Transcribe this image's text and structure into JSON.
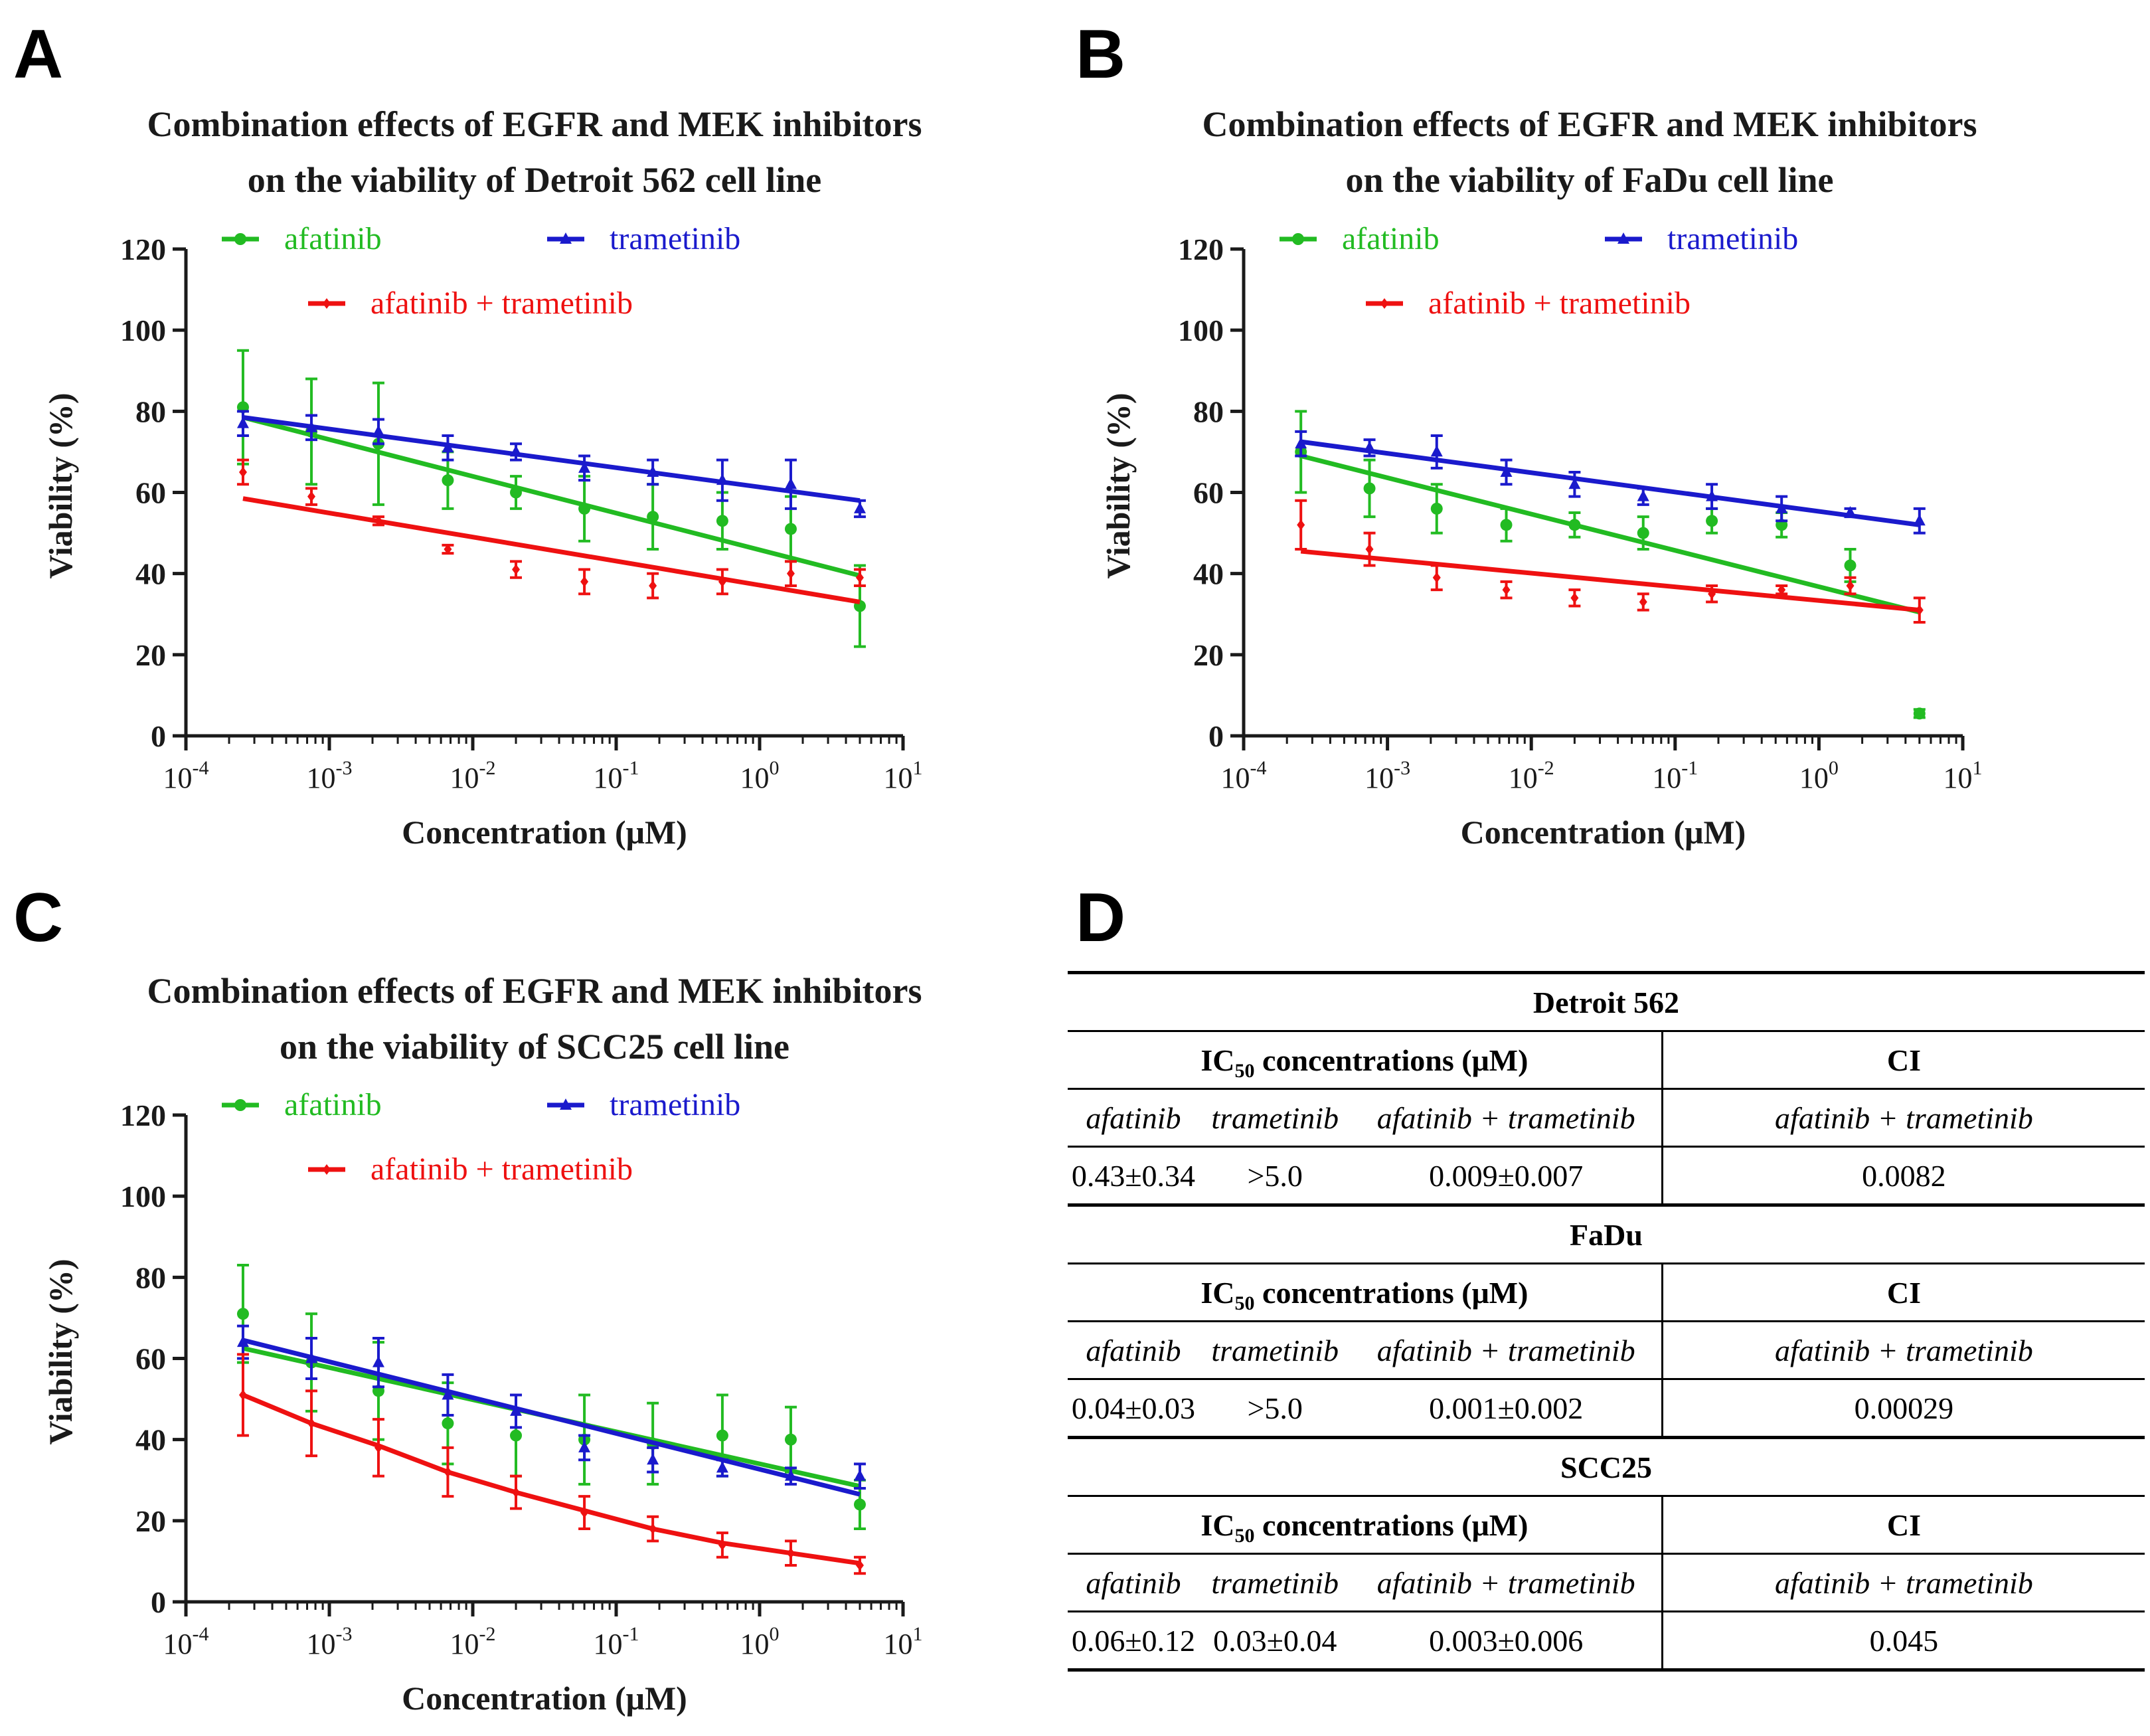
{
  "panel_letters": {
    "a": "A",
    "b": "B",
    "c": "C",
    "d": "D"
  },
  "colors": {
    "afatinib": "#22bb22",
    "trametinib": "#1a1acc",
    "combo": "#ee1111"
  },
  "chart_data": [
    {
      "type": "line",
      "panel": "A",
      "title_lines": [
        "Combination effects of EGFR and MEK inhibitors",
        "on the viability of Detroit 562 cell line"
      ],
      "xlabel": "Concentration (μM)",
      "ylabel": "Viability (%)",
      "xscale": "log",
      "xlim": [
        0.0001,
        10
      ],
      "ylim": [
        0,
        120
      ],
      "xticks": [
        {
          "base": "10",
          "exp": "-4"
        },
        {
          "base": "10",
          "exp": "-3"
        },
        {
          "base": "10",
          "exp": "-2"
        },
        {
          "base": "10",
          "exp": "-1"
        },
        {
          "base": "10",
          "exp": "0"
        },
        {
          "base": "10",
          "exp": "1"
        }
      ],
      "yticks": [
        "0",
        "20",
        "40",
        "60",
        "80",
        "100",
        "120"
      ],
      "x": [
        0.00025,
        0.00075,
        0.0022,
        0.0067,
        0.02,
        0.06,
        0.18,
        0.55,
        1.65,
        5
      ],
      "series": [
        {
          "name": "afatinib",
          "key": "afatinib",
          "marker": "circle",
          "values": [
            81,
            75,
            72,
            63,
            60,
            56,
            54,
            53,
            51,
            32
          ],
          "errors": [
            14,
            13,
            15,
            7,
            4,
            8,
            8,
            7,
            8,
            10
          ],
          "fit": [
            78.5,
            39.5
          ]
        },
        {
          "name": "trametinib",
          "key": "trametinib",
          "marker": "triangle",
          "values": [
            77,
            76,
            75,
            71,
            70,
            66,
            65,
            63,
            62,
            56
          ],
          "errors": [
            3,
            3,
            3,
            3,
            2,
            3,
            3,
            5,
            6,
            2
          ],
          "fit": [
            78.5,
            58
          ]
        },
        {
          "name": "afatinib + trametinib",
          "key": "combo",
          "marker": "diamond",
          "values": [
            65,
            59,
            53,
            46,
            41,
            38,
            37,
            38,
            40,
            39
          ],
          "errors": [
            3,
            2,
            1,
            1,
            2,
            3,
            3,
            3,
            3,
            2
          ],
          "fit": [
            58.5,
            33
          ]
        }
      ]
    },
    {
      "type": "line",
      "panel": "B",
      "title_lines": [
        "Combination effects of EGFR and MEK inhibitors",
        "on the viability of FaDu cell line"
      ],
      "xlabel": "Concentration (μM)",
      "ylabel": "Viability (%)",
      "xscale": "log",
      "xlim": [
        0.0001,
        10
      ],
      "ylim": [
        0,
        120
      ],
      "xticks": [
        {
          "base": "10",
          "exp": "-4"
        },
        {
          "base": "10",
          "exp": "-3"
        },
        {
          "base": "10",
          "exp": "-2"
        },
        {
          "base": "10",
          "exp": "-1"
        },
        {
          "base": "10",
          "exp": "0"
        },
        {
          "base": "10",
          "exp": "1"
        }
      ],
      "yticks": [
        "0",
        "20",
        "40",
        "60",
        "80",
        "100",
        "120"
      ],
      "x": [
        0.00025,
        0.00075,
        0.0022,
        0.0067,
        0.02,
        0.06,
        0.18,
        0.55,
        1.65,
        5
      ],
      "series": [
        {
          "name": "afatinib",
          "key": "afatinib",
          "marker": "circle",
          "values": [
            70,
            61,
            56,
            52,
            52,
            50,
            53,
            52,
            42,
            5.5
          ],
          "errors": [
            10,
            7,
            6,
            4,
            3,
            4,
            3,
            3,
            4,
            1
          ],
          "fit": [
            69,
            30.5
          ]
        },
        {
          "name": "trametinib",
          "key": "trametinib",
          "marker": "triangle",
          "values": [
            72,
            71,
            70,
            65,
            62,
            59,
            59,
            56,
            55,
            53
          ],
          "errors": [
            3,
            2,
            4,
            3,
            3,
            2,
            3,
            3,
            1,
            3
          ],
          "fit": [
            72.5,
            52
          ]
        },
        {
          "name": "afatinib + trametinib",
          "key": "combo",
          "marker": "diamond",
          "values": [
            52,
            46,
            39,
            36,
            34,
            33,
            35,
            36,
            37,
            31
          ],
          "errors": [
            6,
            4,
            3,
            2,
            2,
            2,
            2,
            1,
            2,
            3
          ],
          "fit": [
            45.5,
            31
          ]
        }
      ]
    },
    {
      "type": "line",
      "panel": "C",
      "title_lines": [
        "Combination effects of EGFR and MEK inhibitors",
        "on the viability of SCC25 cell line"
      ],
      "xlabel": "Concentration (μM)",
      "ylabel": "Viability (%)",
      "xscale": "log",
      "xlim": [
        0.0001,
        10
      ],
      "ylim": [
        0,
        120
      ],
      "xticks": [
        {
          "base": "10",
          "exp": "-4"
        },
        {
          "base": "10",
          "exp": "-3"
        },
        {
          "base": "10",
          "exp": "-2"
        },
        {
          "base": "10",
          "exp": "-1"
        },
        {
          "base": "10",
          "exp": "0"
        },
        {
          "base": "10",
          "exp": "1"
        }
      ],
      "yticks": [
        "0",
        "20",
        "40",
        "60",
        "80",
        "100",
        "120"
      ],
      "x": [
        0.00025,
        0.00075,
        0.0022,
        0.0067,
        0.02,
        0.06,
        0.18,
        0.55,
        1.65,
        5
      ],
      "series": [
        {
          "name": "afatinib",
          "key": "afatinib",
          "marker": "circle",
          "values": [
            71,
            59,
            52,
            44,
            41,
            40,
            39,
            41,
            40,
            24
          ],
          "errors": [
            12,
            12,
            12,
            10,
            10,
            11,
            10,
            10,
            8,
            6
          ],
          "fit": [
            62.5,
            28.5
          ]
        },
        {
          "name": "trametinib",
          "key": "trametinib",
          "marker": "triangle",
          "values": [
            64,
            60,
            59,
            51,
            47,
            38,
            35,
            33,
            31,
            31
          ],
          "errors": [
            4,
            5,
            6,
            5,
            4,
            3,
            3,
            2,
            2,
            3
          ],
          "fit": [
            64.5,
            26.5
          ]
        },
        {
          "name": "afatinib + trametinib",
          "key": "combo",
          "marker": "diamond",
          "values": [
            51,
            44,
            38,
            32,
            27,
            22,
            18,
            14,
            12,
            9
          ],
          "errors": [
            10,
            8,
            7,
            6,
            4,
            4,
            3,
            3,
            3,
            2
          ],
          "fit_curve": [
            51,
            44,
            38.5,
            32,
            27,
            22.5,
            18,
            14.5,
            12,
            9.5
          ]
        }
      ]
    }
  ],
  "table": {
    "blocks": [
      {
        "name": "Detroit 562",
        "afatinib": "0.43±0.34",
        "trametinib": ">5.0",
        "combo": "0.009±0.007",
        "ci": "0.0082"
      },
      {
        "name": "FaDu",
        "afatinib": "0.04±0.03",
        "trametinib": ">5.0",
        "combo": "0.001±0.002",
        "ci": "0.00029"
      },
      {
        "name": "SCC25",
        "afatinib": "0.06±0.12",
        "trametinib": "0.03±0.04",
        "combo": "0.003±0.006",
        "ci": "0.045"
      }
    ],
    "ic50_label": "IC",
    "ic50_sub": "50",
    "ic50_rest": " concentrations (μM)",
    "ci_label": "CI",
    "col_afatinib": "afatinib",
    "col_trametinib": "trametinib",
    "col_combo": "afatinib + trametinib"
  }
}
